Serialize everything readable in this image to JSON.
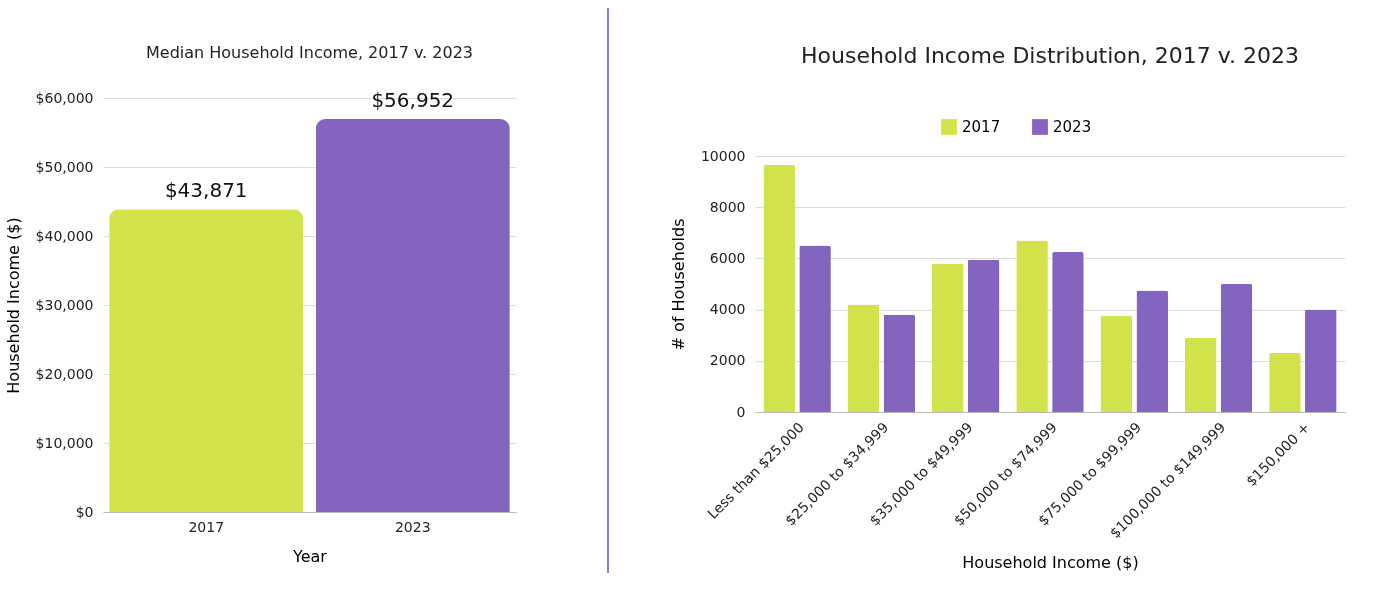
{
  "chart_data": [
    {
      "type": "bar",
      "title": "Median Household Income, 2017 v. 2023",
      "xlabel": "Year",
      "ylabel": "Household Income ($)",
      "categories": [
        "2017",
        "2023"
      ],
      "values": [
        43871,
        56952
      ],
      "colors": [
        "#d2e24b",
        "#8365c0"
      ],
      "value_labels": [
        "$43,871",
        "$56,952"
      ],
      "ylim": [
        0,
        60000
      ],
      "yticks": [
        {
          "value": 0,
          "label": "$0"
        },
        {
          "value": 10000,
          "label": "$10,000"
        },
        {
          "value": 20000,
          "label": "$20,000"
        },
        {
          "value": 30000,
          "label": "$30,000"
        },
        {
          "value": 40000,
          "label": "$40,000"
        },
        {
          "value": 50000,
          "label": "$50,000"
        },
        {
          "value": 60000,
          "label": "$60,000"
        }
      ],
      "grid": "y"
    },
    {
      "type": "bar",
      "title": "Household Income Distribution, 2017 v. 2023",
      "xlabel": "Household Income ($)",
      "ylabel": "# of Households",
      "categories": [
        "Less than $25,000",
        "$25,000 to $34,999",
        "$35,000 to $49,999",
        "$50,000 to $74,999",
        "$75,000 to $99,999",
        "$100,000 to $149,999",
        "$150,000 +"
      ],
      "series": [
        {
          "name": "2017",
          "color": "#d2e24b",
          "values": [
            9650,
            4200,
            5800,
            6700,
            3750,
            2900,
            2300
          ]
        },
        {
          "name": "2023",
          "color": "#8365c0",
          "values": [
            6500,
            3800,
            5950,
            6250,
            4750,
            5000,
            4000
          ]
        }
      ],
      "ylim": [
        0,
        10000
      ],
      "yticks": [
        0,
        2000,
        4000,
        6000,
        8000,
        10000
      ],
      "grid": "y",
      "legend": "top"
    }
  ]
}
